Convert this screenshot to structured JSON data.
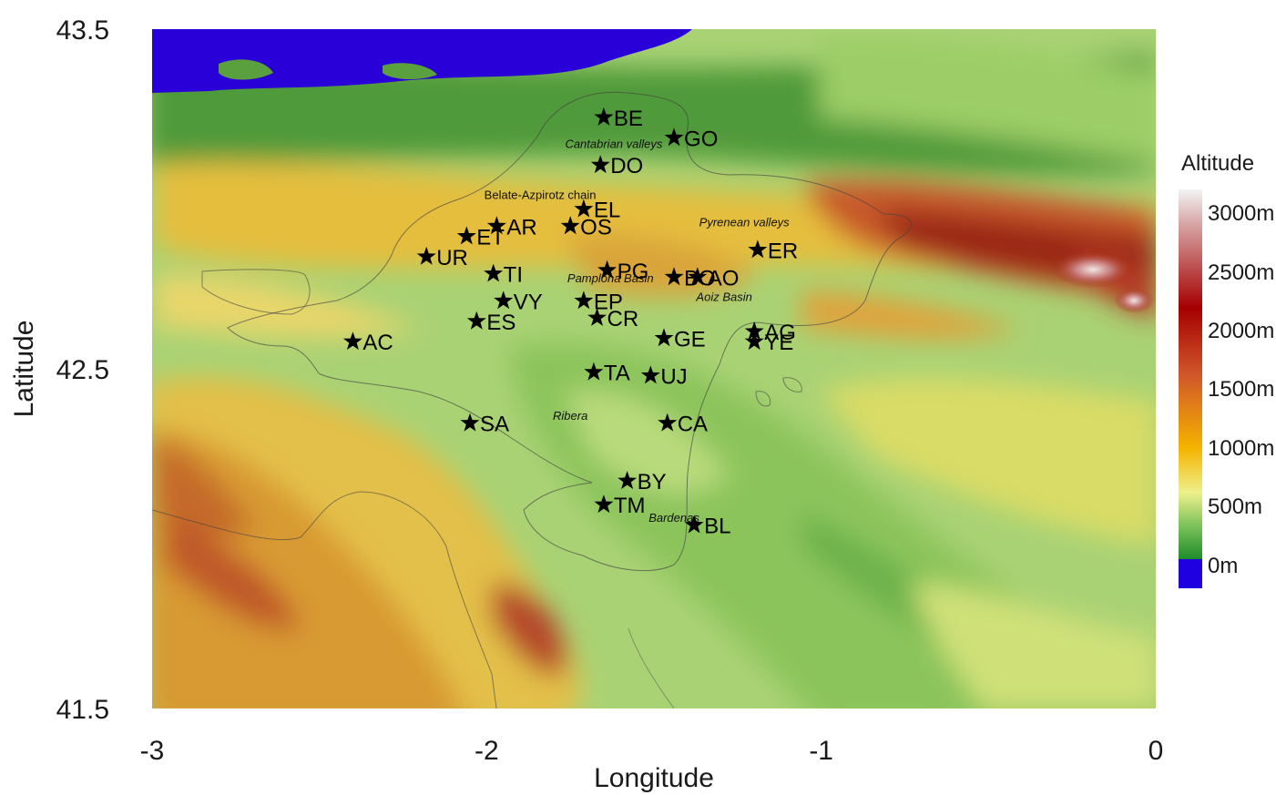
{
  "map": {
    "xlabel": "Longitude",
    "ylabel": "Latitude",
    "xlim": [
      -3,
      0
    ],
    "ylim": [
      41.5,
      43.5
    ],
    "x_ticks": [
      {
        "v": -3,
        "t": "-3"
      },
      {
        "v": -2,
        "t": "-2"
      },
      {
        "v": -1,
        "t": "-1"
      },
      {
        "v": 0,
        "t": "0"
      }
    ],
    "y_ticks": [
      {
        "v": 41.5,
        "t": "41.5"
      },
      {
        "v": 42.5,
        "t": "42.5"
      },
      {
        "v": 43.5,
        "t": "43.5"
      }
    ],
    "stations": [
      {
        "code": "BE",
        "lon": -1.65,
        "lat": 43.24
      },
      {
        "code": "GO",
        "lon": -1.44,
        "lat": 43.18
      },
      {
        "code": "DO",
        "lon": -1.66,
        "lat": 43.1
      },
      {
        "code": "EL",
        "lon": -1.71,
        "lat": 42.97
      },
      {
        "code": "AR",
        "lon": -1.97,
        "lat": 42.92
      },
      {
        "code": "OS",
        "lon": -1.75,
        "lat": 42.92
      },
      {
        "code": "ET",
        "lon": -2.06,
        "lat": 42.89
      },
      {
        "code": "UR",
        "lon": -2.18,
        "lat": 42.83
      },
      {
        "code": "TI",
        "lon": -1.98,
        "lat": 42.78
      },
      {
        "code": "PG",
        "lon": -1.64,
        "lat": 42.79
      },
      {
        "code": "BO",
        "lon": -1.44,
        "lat": 42.77
      },
      {
        "code": "AO",
        "lon": -1.37,
        "lat": 42.77
      },
      {
        "code": "ER",
        "lon": -1.19,
        "lat": 42.85
      },
      {
        "code": "VY",
        "lon": -1.95,
        "lat": 42.7
      },
      {
        "code": "EP",
        "lon": -1.71,
        "lat": 42.7
      },
      {
        "code": "CR",
        "lon": -1.67,
        "lat": 42.65
      },
      {
        "code": "ES",
        "lon": -2.03,
        "lat": 42.64
      },
      {
        "code": "AC",
        "lon": -2.4,
        "lat": 42.58
      },
      {
        "code": "GE",
        "lon": -1.47,
        "lat": 42.59
      },
      {
        "code": "AG",
        "lon": -1.2,
        "lat": 42.61
      },
      {
        "code": "YE",
        "lon": -1.2,
        "lat": 42.58
      },
      {
        "code": "TA",
        "lon": -1.68,
        "lat": 42.49
      },
      {
        "code": "UJ",
        "lon": -1.51,
        "lat": 42.48
      },
      {
        "code": "SA",
        "lon": -2.05,
        "lat": 42.34
      },
      {
        "code": "CA",
        "lon": -1.46,
        "lat": 42.34
      },
      {
        "code": "BY",
        "lon": -1.58,
        "lat": 42.17
      },
      {
        "code": "TM",
        "lon": -1.65,
        "lat": 42.1
      },
      {
        "code": "BL",
        "lon": -1.38,
        "lat": 42.04
      }
    ],
    "regions": [
      {
        "text": "Cantabrian valleys",
        "lon": -1.62,
        "lat": 43.15,
        "italic": true
      },
      {
        "text": "Belate-Azpirotz chain",
        "lon": -1.84,
        "lat": 43.0,
        "italic": false
      },
      {
        "text": "Pyrenean valleys",
        "lon": -1.23,
        "lat": 42.92,
        "italic": true
      },
      {
        "text": "Pamplona Basin",
        "lon": -1.63,
        "lat": 42.755,
        "italic": true
      },
      {
        "text": "Aoiz Basin",
        "lon": -1.29,
        "lat": 42.7,
        "italic": true
      },
      {
        "text": "Ribera",
        "lon": -1.75,
        "lat": 42.35,
        "italic": true
      },
      {
        "text": "Bardenas",
        "lon": -1.44,
        "lat": 42.05,
        "italic": true
      }
    ],
    "legend": {
      "title": "Altitude",
      "labels": [
        "3000m",
        "2500m",
        "2000m",
        "1500m",
        "1000m",
        "500m",
        "0m"
      ],
      "colors": [
        "#f3f3f3",
        "#d9a5a5",
        "#a50000",
        "#d0562a",
        "#f5b400",
        "#eef08c",
        "#1e8c2a",
        "#1e00e0"
      ]
    },
    "colors": {
      "sea": "#2a00d8",
      "lowland": "#86c35b",
      "valley_green": "#b7d97a",
      "hills": "#e3d84a",
      "mountain": "#e3a23a",
      "high": "#c8502a",
      "peak": "#8f1c12",
      "snow": "#e8e0e0"
    }
  }
}
